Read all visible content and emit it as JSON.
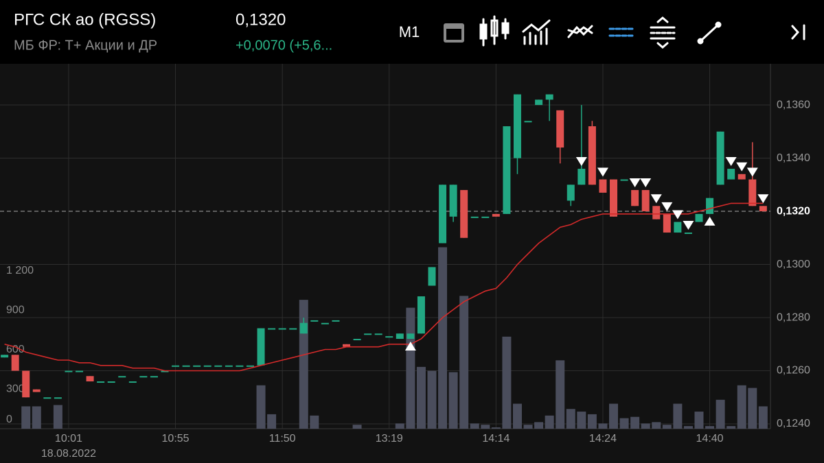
{
  "header": {
    "title": "РГС СК ао (RGSS)",
    "subtitle": "МБ ФР: Т+ Акции и ДР",
    "price": "0,1320",
    "change": "+0,0070 (+5,6...",
    "timeframe": "M1"
  },
  "chart_data": {
    "type": "candlestick",
    "categories": [
      null,
      null,
      null,
      null,
      null,
      null,
      "10:01",
      null,
      null,
      null,
      null,
      null,
      null,
      null,
      null,
      null,
      "10:55",
      null,
      null,
      null,
      null,
      null,
      null,
      null,
      null,
      null,
      "11:50",
      null,
      null,
      null,
      null,
      null,
      null,
      null,
      null,
      null,
      "13:19",
      null,
      null,
      null,
      null,
      null,
      null,
      null,
      null,
      null,
      "14:14",
      null,
      null,
      null,
      null,
      null,
      null,
      null,
      null,
      null,
      "14:24",
      null,
      null,
      null,
      null,
      null,
      null,
      null,
      null,
      null,
      "14:40",
      null,
      null,
      null,
      null,
      null
    ],
    "date_label": "18.08.2022",
    "candles": [
      [
        0.1265,
        0.1266,
        0.1265,
        0.1266
      ],
      [
        0.1266,
        0.1266,
        0.126,
        0.126
      ],
      [
        0.126,
        0.126,
        0.125,
        0.125
      ],
      [
        0.1253,
        0.1253,
        0.1252,
        0.1252
      ],
      [
        0.125,
        0.125,
        0.125,
        0.125
      ],
      [
        0.125,
        0.125,
        0.125,
        0.125
      ],
      [
        0.126,
        0.126,
        0.126,
        0.126
      ],
      [
        0.126,
        0.126,
        0.126,
        0.126
      ],
      [
        0.1258,
        0.1258,
        0.1256,
        0.1256
      ],
      [
        0.1256,
        0.1256,
        0.1256,
        0.1256
      ],
      [
        0.1256,
        0.1256,
        0.1256,
        0.1256
      ],
      [
        0.1258,
        0.1258,
        0.1258,
        0.1258
      ],
      [
        0.1256,
        0.1256,
        0.1256,
        0.1256
      ],
      [
        0.1258,
        0.1258,
        0.1258,
        0.1258
      ],
      [
        0.1258,
        0.1258,
        0.1258,
        0.1258
      ],
      [
        0.126,
        0.126,
        0.126,
        0.126
      ],
      [
        0.1262,
        0.1262,
        0.1262,
        0.1262
      ],
      [
        0.1262,
        0.1262,
        0.1262,
        0.1262
      ],
      [
        0.1262,
        0.1262,
        0.1262,
        0.1262
      ],
      [
        0.1262,
        0.1262,
        0.1262,
        0.1262
      ],
      [
        0.1262,
        0.1262,
        0.1262,
        0.1262
      ],
      [
        0.1262,
        0.1262,
        0.1262,
        0.1262
      ],
      [
        0.1262,
        0.1262,
        0.1262,
        0.1262
      ],
      [
        0.1262,
        0.1262,
        0.1262,
        0.1262
      ],
      [
        0.1262,
        0.1276,
        0.1262,
        0.1276
      ],
      [
        0.1276,
        0.1276,
        0.1276,
        0.1276
      ],
      [
        0.1276,
        0.1276,
        0.1276,
        0.1276
      ],
      [
        0.1276,
        0.1276,
        0.1276,
        0.1276
      ],
      [
        0.1274,
        0.128,
        0.1274,
        0.1278
      ],
      [
        0.1279,
        0.1279,
        0.1279,
        0.1279
      ],
      [
        0.1278,
        0.1278,
        0.1278,
        0.1278
      ],
      [
        0.1279,
        0.1279,
        0.1279,
        0.1279
      ],
      [
        0.127,
        0.127,
        0.1269,
        0.1269
      ],
      [
        0.1272,
        0.1272,
        0.1272,
        0.1272
      ],
      [
        0.1274,
        0.1274,
        0.1274,
        0.1274
      ],
      [
        0.1274,
        0.1274,
        0.1274,
        0.1274
      ],
      [
        0.1273,
        0.1273,
        0.1273,
        0.1273
      ],
      [
        0.1272,
        0.1274,
        0.1272,
        0.1274
      ],
      [
        0.1272,
        0.1274,
        0.1272,
        0.1274
      ],
      [
        0.1274,
        0.1288,
        0.1274,
        0.1288
      ],
      [
        0.1292,
        0.1299,
        0.1292,
        0.1299
      ],
      [
        0.1308,
        0.133,
        0.1308,
        0.133
      ],
      [
        0.1318,
        0.133,
        0.1316,
        0.133
      ],
      [
        0.1328,
        0.1328,
        0.131,
        0.131
      ],
      [
        0.1318,
        0.1318,
        0.1318,
        0.1318
      ],
      [
        0.1318,
        0.1318,
        0.1318,
        0.1318
      ],
      [
        0.1319,
        0.1319,
        0.1318,
        0.1318
      ],
      [
        0.1319,
        0.1352,
        0.1319,
        0.1352
      ],
      [
        0.134,
        0.1364,
        0.1334,
        0.1364
      ],
      [
        0.1354,
        0.1354,
        0.1354,
        0.1354
      ],
      [
        0.136,
        0.1362,
        0.136,
        0.1362
      ],
      [
        0.1362,
        0.1364,
        0.1354,
        0.1364
      ],
      [
        0.1358,
        0.1358,
        0.1338,
        0.1344
      ],
      [
        0.1324,
        0.133,
        0.1322,
        0.133
      ],
      [
        0.133,
        0.136,
        0.133,
        0.1336
      ],
      [
        0.1352,
        0.1354,
        0.133,
        0.133
      ],
      [
        0.1332,
        0.1332,
        0.1327,
        0.1327
      ],
      [
        0.1332,
        0.1332,
        0.1318,
        0.1318
      ],
      [
        0.1332,
        0.1332,
        0.1332,
        0.1332
      ],
      [
        0.1328,
        0.1328,
        0.1322,
        0.1322
      ],
      [
        0.1328,
        0.1328,
        0.132,
        0.132
      ],
      [
        0.1322,
        0.1322,
        0.1317,
        0.1317
      ],
      [
        0.1319,
        0.1319,
        0.1312,
        0.1312
      ],
      [
        0.1312,
        0.1316,
        0.1312,
        0.1316
      ],
      [
        0.1312,
        0.1312,
        0.1312,
        0.1312
      ],
      [
        0.1316,
        0.1319,
        0.1316,
        0.1319
      ],
      [
        0.1319,
        0.1325,
        0.1319,
        0.1325
      ],
      [
        0.133,
        0.135,
        0.133,
        0.135
      ],
      [
        0.1332,
        0.1336,
        0.1332,
        0.1336
      ],
      [
        0.1334,
        0.1334,
        0.1332,
        0.1332
      ],
      [
        0.1332,
        0.1346,
        0.1322,
        0.1322
      ],
      [
        0.1322,
        0.1322,
        0.132,
        0.132
      ]
    ],
    "up_color": "#22a883",
    "down_color": "#e0514f",
    "volumes": [
      0,
      0,
      170,
      170,
      0,
      180,
      0,
      0,
      0,
      0,
      0,
      0,
      0,
      0,
      0,
      0,
      0,
      0,
      0,
      0,
      0,
      0,
      0,
      0,
      330,
      110,
      0,
      0,
      980,
      100,
      0,
      0,
      0,
      30,
      0,
      0,
      0,
      40,
      920,
      470,
      440,
      1380,
      430,
      1010,
      40,
      30,
      10,
      700,
      190,
      30,
      50,
      100,
      520,
      150,
      130,
      110,
      40,
      190,
      80,
      90,
      40,
      50,
      30,
      190,
      20,
      130,
      20,
      220,
      20,
      330,
      310,
      170
    ],
    "volume_color": "#4a4d5c",
    "ma": {
      "color": "#d42a2a",
      "values": [
        0.127,
        0.1269,
        0.1267,
        0.1266,
        0.1265,
        0.1264,
        0.1264,
        0.1263,
        0.1263,
        0.1262,
        0.1262,
        0.1262,
        0.1261,
        0.1261,
        0.1261,
        0.126,
        0.126,
        0.126,
        0.126,
        0.126,
        0.126,
        0.126,
        0.126,
        0.1261,
        0.1262,
        0.1263,
        0.1264,
        0.1265,
        0.1266,
        0.1267,
        0.1268,
        0.1268,
        0.1269,
        0.1269,
        0.1269,
        0.1269,
        0.127,
        0.127,
        0.127,
        0.1272,
        0.1276,
        0.128,
        0.1283,
        0.1286,
        0.1288,
        0.129,
        0.1291,
        0.1295,
        0.13,
        0.1304,
        0.1308,
        0.1311,
        0.1314,
        0.1315,
        0.1317,
        0.1318,
        0.1319,
        0.1319,
        0.1319,
        0.1319,
        0.1319,
        0.1319,
        0.1319,
        0.1319,
        0.1319,
        0.132,
        0.1321,
        0.1322,
        0.1323,
        0.1323,
        0.1323,
        0.1323
      ]
    },
    "markers_up": [
      38,
      66
    ],
    "markers_down": [
      54,
      56,
      59,
      60,
      61,
      62,
      63,
      64,
      68,
      69,
      70,
      71
    ],
    "last_price": {
      "value": 0.132,
      "label": "0,1320"
    },
    "ylim": [
      0.12382,
      0.13755
    ],
    "yticks": [
      {
        "value": 0.136,
        "label": "0,1360"
      },
      {
        "value": 0.134,
        "label": "0,1340"
      },
      {
        "value": 0.13,
        "label": "0,1300"
      },
      {
        "value": 0.128,
        "label": "0,1280"
      },
      {
        "value": 0.126,
        "label": "0,1260"
      },
      {
        "value": 0.124,
        "label": "0,1240"
      }
    ],
    "y2lim": [
      0,
      2775
    ],
    "y2ticks": [
      {
        "value": 1200,
        "label": "1 200"
      },
      900,
      600,
      300,
      0
    ],
    "grid": true
  }
}
